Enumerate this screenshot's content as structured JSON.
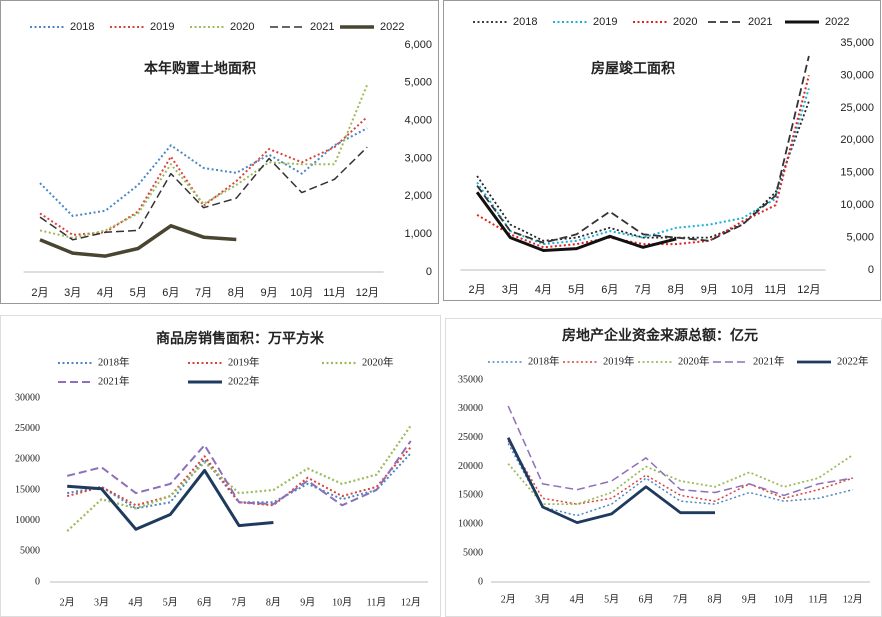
{
  "chart_data": [
    {
      "type": "line",
      "title": "本年购置土地面积",
      "yaxis_side": "right",
      "grid": false,
      "categories": [
        "2月",
        "3月",
        "4月",
        "5月",
        "6月",
        "7月",
        "8月",
        "9月",
        "10月",
        "11月",
        "12月"
      ],
      "ylim": [
        0,
        6000
      ],
      "yticks": [
        0,
        {
          "value": 1000,
          "label": "1,000"
        },
        {
          "value": 2000,
          "label": "2,000"
        },
        {
          "value": 3000,
          "label": "3,000"
        },
        {
          "value": 4000,
          "label": "4,000"
        },
        {
          "value": 5000,
          "label": "5,000"
        },
        {
          "value": 6000,
          "label": "6,000"
        }
      ],
      "series": [
        {
          "name": "2018",
          "color": "#4a86c5",
          "style": "dotted",
          "width": 2,
          "values": [
            2350,
            1480,
            1620,
            2300,
            3350,
            2750,
            2620,
            3100,
            2600,
            3350,
            3800
          ]
        },
        {
          "name": "2019",
          "color": "#d9423a",
          "style": "dotted",
          "width": 2,
          "values": [
            1550,
            980,
            1050,
            1600,
            3050,
            1750,
            2400,
            3250,
            2900,
            3300,
            4100
          ]
        },
        {
          "name": "2020",
          "color": "#9bbb59",
          "style": "dotted",
          "width": 2,
          "values": [
            1100,
            900,
            1100,
            1550,
            2850,
            1800,
            2300,
            2900,
            2850,
            2850,
            4950
          ]
        },
        {
          "name": "2021",
          "color": "#333333",
          "style": "dashed",
          "width": 1.5,
          "values": [
            1450,
            850,
            1050,
            1100,
            2600,
            1700,
            1950,
            3000,
            2100,
            2450,
            3300
          ]
        },
        {
          "name": "2022",
          "color": "#4a4530",
          "style": "solid",
          "width": 3.5,
          "values": [
            850,
            500,
            420,
            620,
            1220,
            920,
            860,
            null,
            null,
            null,
            null
          ]
        }
      ]
    },
    {
      "type": "line",
      "title": "房屋竣工面积",
      "yaxis_side": "right",
      "grid": false,
      "categories": [
        "2月",
        "3月",
        "4月",
        "5月",
        "6月",
        "7月",
        "8月",
        "9月",
        "10月",
        "11月",
        "12月"
      ],
      "ylim": [
        0,
        35000
      ],
      "yticks": [
        0,
        {
          "value": 5000,
          "label": "5,000"
        },
        {
          "value": 10000,
          "label": "10,000"
        },
        {
          "value": 15000,
          "label": "15,000"
        },
        {
          "value": 20000,
          "label": "20,000"
        },
        {
          "value": 25000,
          "label": "25,000"
        },
        {
          "value": 30000,
          "label": "30,000"
        },
        {
          "value": 35000,
          "label": "35,000"
        }
      ],
      "series": [
        {
          "name": "2018",
          "color": "#222222",
          "style": "dotted",
          "width": 1.8,
          "values": [
            14500,
            7000,
            4500,
            5000,
            6500,
            5000,
            5000,
            5000,
            7000,
            12000,
            26000
          ]
        },
        {
          "name": "2019",
          "color": "#1ab0d8",
          "style": "dotted",
          "width": 2,
          "values": [
            13500,
            6000,
            4000,
            4500,
            6000,
            5000,
            6500,
            7000,
            8000,
            11000,
            28000
          ]
        },
        {
          "name": "2020",
          "color": "#e02020",
          "style": "dotted",
          "width": 2,
          "values": [
            8500,
            5500,
            3500,
            4000,
            5000,
            4000,
            4000,
            4500,
            7500,
            10000,
            30000
          ]
        },
        {
          "name": "2021",
          "color": "#333333",
          "style": "dashed",
          "width": 1.8,
          "values": [
            13000,
            6000,
            4200,
            5500,
            9000,
            5500,
            5000,
            4500,
            7000,
            11500,
            33000
          ]
        },
        {
          "name": "2022",
          "color": "#111111",
          "style": "solid",
          "width": 3,
          "values": [
            12000,
            5000,
            3000,
            3300,
            5200,
            3500,
            4800,
            null,
            null,
            null,
            null
          ]
        }
      ]
    },
    {
      "type": "line",
      "title": "商品房销售面积：万平方米",
      "yaxis_side": "left",
      "grid": false,
      "categories": [
        "2月",
        "3月",
        "4月",
        "5月",
        "6月",
        "7月",
        "8月",
        "9月",
        "10月",
        "11月",
        "12月"
      ],
      "ylim": [
        0,
        30000
      ],
      "yticks": [
        0,
        5000,
        10000,
        15000,
        20000,
        25000,
        30000
      ],
      "series": [
        {
          "name": "2018年",
          "color": "#4a86c5",
          "style": "dotted",
          "width": 2,
          "values": [
            14500,
            15500,
            12000,
            13000,
            20000,
            13000,
            13000,
            16000,
            13500,
            15000,
            21000
          ]
        },
        {
          "name": "2019年",
          "color": "#d9423a",
          "style": "dotted",
          "width": 2,
          "values": [
            14000,
            15500,
            12500,
            14000,
            20500,
            13000,
            12500,
            17000,
            14000,
            15500,
            22000
          ]
        },
        {
          "name": "2020年",
          "color": "#9bbb59",
          "style": "dotted",
          "width": 2.2,
          "values": [
            8300,
            13500,
            12000,
            14000,
            19500,
            14500,
            15000,
            18500,
            16000,
            17500,
            25500
          ]
        },
        {
          "name": "2021年",
          "color": "#8e6fb8",
          "style": "dashed",
          "width": 2,
          "values": [
            17300,
            18700,
            14500,
            16000,
            22300,
            13000,
            12700,
            16500,
            12500,
            15000,
            23000
          ]
        },
        {
          "name": "2022年",
          "color": "#1f3a5f",
          "style": "solid",
          "width": 3,
          "values": [
            15600,
            15200,
            8600,
            11000,
            18200,
            9200,
            9700,
            null,
            null,
            null,
            null
          ]
        }
      ]
    },
    {
      "type": "line",
      "title": "房地产企业资金来源总额：亿元",
      "yaxis_side": "left",
      "grid": false,
      "categories": [
        "2月",
        "3月",
        "4月",
        "5月",
        "6月",
        "7月",
        "8月",
        "9月",
        "10月",
        "11月",
        "12月"
      ],
      "ylim": [
        0,
        35000
      ],
      "yticks": [
        0,
        5000,
        10000,
        15000,
        20000,
        25000,
        30000,
        35000
      ],
      "series": [
        {
          "name": "2018年",
          "color": "#4a86c5",
          "style": "dotted",
          "width": 1.5,
          "values": [
            24000,
            13000,
            11500,
            13500,
            18000,
            14000,
            13500,
            15500,
            14000,
            14500,
            16000
          ]
        },
        {
          "name": "2019年",
          "color": "#d9423a",
          "style": "dotted",
          "width": 1.5,
          "values": [
            24500,
            14500,
            13500,
            14500,
            18500,
            15000,
            14000,
            17000,
            14500,
            16000,
            18000
          ]
        },
        {
          "name": "2020年",
          "color": "#9bbb59",
          "style": "dotted",
          "width": 1.8,
          "values": [
            20500,
            13500,
            13500,
            15500,
            20000,
            17500,
            16500,
            19000,
            16500,
            18000,
            22000
          ]
        },
        {
          "name": "2021年",
          "color": "#8e6fb8",
          "style": "dashed",
          "width": 1.5,
          "values": [
            30500,
            17000,
            16000,
            17500,
            21500,
            16000,
            15500,
            17000,
            15000,
            17000,
            18000
          ]
        },
        {
          "name": "2022年",
          "color": "#1f3a5f",
          "style": "solid",
          "width": 2.8,
          "values": [
            25000,
            13000,
            10300,
            11800,
            16500,
            12000,
            12000,
            null,
            null,
            null,
            null
          ]
        }
      ]
    }
  ]
}
